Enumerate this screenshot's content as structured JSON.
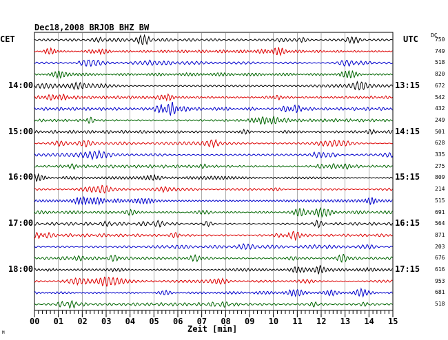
{
  "chart_data": {
    "type": "line",
    "title": "Dec18,2008   BRJOB BHZ BW",
    "left_timezone": "CET",
    "right_timezone": "UTC",
    "dc_label": "DC",
    "xlabel": "Zeit [min]",
    "xlim": [
      0,
      15
    ],
    "x_tick_labels": [
      "00",
      "01",
      "02",
      "03",
      "04",
      "05",
      "06",
      "07",
      "08",
      "09",
      "10",
      "11",
      "12",
      "13",
      "14",
      "15"
    ],
    "grid": true,
    "trace_colors": [
      "#000000",
      "#dd0000",
      "#0000cc",
      "#006600"
    ],
    "traces": 24,
    "left_hour_labels": [
      {
        "row": 4,
        "label": "14:00"
      },
      {
        "row": 8,
        "label": "15:00"
      },
      {
        "row": 12,
        "label": "16:00"
      },
      {
        "row": 16,
        "label": "17:00"
      },
      {
        "row": 20,
        "label": "18:00"
      }
    ],
    "right_hour_labels": [
      {
        "row": 4,
        "label": "13:15"
      },
      {
        "row": 8,
        "label": "14:15"
      },
      {
        "row": 12,
        "label": "15:15"
      },
      {
        "row": 16,
        "label": "16:15"
      },
      {
        "row": 20,
        "label": "17:15"
      }
    ],
    "dc_offsets": [
      "750",
      "749",
      "518",
      "820",
      "672",
      "542",
      "432",
      "249",
      "501",
      "628",
      "335",
      "275",
      "809",
      "214",
      "515",
      "691",
      "564",
      "871",
      "203",
      "676",
      "616",
      "953",
      "681",
      "518"
    ]
  },
  "corner_mark": "M"
}
